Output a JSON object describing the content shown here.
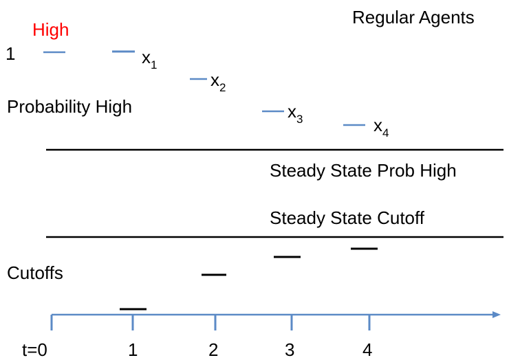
{
  "title": "Regular Agents",
  "high_label": "High",
  "one_label": "1",
  "prob_high_label": "Probability High",
  "steady_state_prob_label": "Steady State Prob High",
  "steady_state_cutoff_label": "Steady State Cutoff",
  "cutoffs_label": "Cutoffs",
  "x_points": [
    {
      "base": "x",
      "sub": "1"
    },
    {
      "base": "x",
      "sub": "2"
    },
    {
      "base": "x",
      "sub": "3"
    },
    {
      "base": "x",
      "sub": "4"
    }
  ],
  "axis": {
    "ticks": [
      "t=0",
      "1",
      "2",
      "3",
      "4"
    ]
  },
  "colors": {
    "accent_blue": "#5b8ac6",
    "high_red": "#ff0000",
    "ink": "#000000"
  }
}
